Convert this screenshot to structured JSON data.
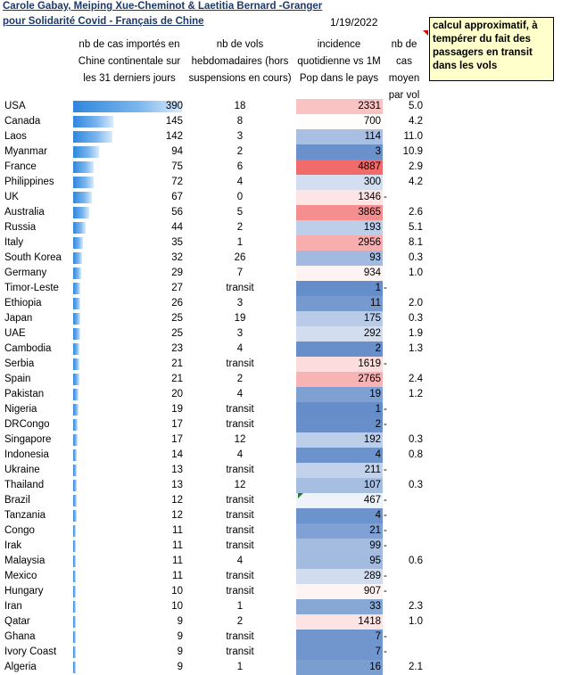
{
  "header": {
    "title_line1": "Carole Gabay, Meiping Xue-Cheminot & Laetitia Bernard -Granger",
    "title_line2": "pour Solidarité Covid - Français de Chine",
    "date": "1/19/2022",
    "note": "calcul approximatif, à tempérer du fait des passagers en transit dans les vols"
  },
  "columns": {
    "cases": "nb de cas importés en Chine continentale sur les 31 derniers jours",
    "flights": "nb de vols hebdomadaires (hors suspensions en cours)",
    "incidence": "incidence quotidienne vs 1M Pop dans le pays",
    "average": "nb de cas moyen par vol"
  },
  "colors": {
    "title": "#1f3a68",
    "bar": "#2e86de",
    "low_incidence": "#5b86c6",
    "high_incidence": "#f26b6b",
    "note_bg": "#ffffcc"
  },
  "rows": [
    {
      "country": "USA",
      "cases": 390,
      "flights": "18",
      "incidence": "2331",
      "dash": "",
      "avg": "5.0"
    },
    {
      "country": "Canada",
      "cases": 145,
      "flights": "8",
      "incidence": "700",
      "dash": "",
      "avg": "4.2"
    },
    {
      "country": "Laos",
      "cases": 142,
      "flights": "3",
      "incidence": "114",
      "dash": "",
      "avg": "11.0"
    },
    {
      "country": "Myanmar",
      "cases": 94,
      "flights": "2",
      "incidence": "3",
      "dash": "",
      "avg": "10.9"
    },
    {
      "country": "France",
      "cases": 75,
      "flights": "6",
      "incidence": "4887",
      "dash": "",
      "avg": "2.9"
    },
    {
      "country": "Philippines",
      "cases": 72,
      "flights": "4",
      "incidence": "300",
      "dash": "",
      "avg": "4.2"
    },
    {
      "country": "UK",
      "cases": 67,
      "flights": "0",
      "incidence": "1346",
      "dash": "-",
      "avg": ""
    },
    {
      "country": "Australia",
      "cases": 56,
      "flights": "5",
      "incidence": "3865",
      "dash": "",
      "avg": "2.6"
    },
    {
      "country": "Russia",
      "cases": 44,
      "flights": "2",
      "incidence": "193",
      "dash": "",
      "avg": "5.1"
    },
    {
      "country": "Italy",
      "cases": 35,
      "flights": "1",
      "incidence": "2956",
      "dash": "",
      "avg": "8.1"
    },
    {
      "country": "South Korea",
      "cases": 32,
      "flights": "26",
      "incidence": "93",
      "dash": "",
      "avg": "0.3"
    },
    {
      "country": "Germany",
      "cases": 29,
      "flights": "7",
      "incidence": "934",
      "dash": "",
      "avg": "1.0"
    },
    {
      "country": "Timor-Leste",
      "cases": 27,
      "flights": "transit",
      "incidence": "1",
      "dash": "-",
      "avg": ""
    },
    {
      "country": "Ethiopia",
      "cases": 26,
      "flights": "3",
      "incidence": "11",
      "dash": "",
      "avg": "2.0"
    },
    {
      "country": "Japan",
      "cases": 25,
      "flights": "19",
      "incidence": "175",
      "dash": "",
      "avg": "0.3"
    },
    {
      "country": "UAE",
      "cases": 25,
      "flights": "3",
      "incidence": "292",
      "dash": "",
      "avg": "1.9"
    },
    {
      "country": "Cambodia",
      "cases": 23,
      "flights": "4",
      "incidence": "2",
      "dash": "",
      "avg": "1.3"
    },
    {
      "country": "Serbia",
      "cases": 21,
      "flights": "transit",
      "incidence": "1619",
      "dash": "-",
      "avg": ""
    },
    {
      "country": "Spain",
      "cases": 21,
      "flights": "2",
      "incidence": "2765",
      "dash": "",
      "avg": "2.4"
    },
    {
      "country": "Pakistan",
      "cases": 20,
      "flights": "4",
      "incidence": "19",
      "dash": "",
      "avg": "1.2"
    },
    {
      "country": "Nigeria",
      "cases": 19,
      "flights": "transit",
      "incidence": "1",
      "dash": "-",
      "avg": ""
    },
    {
      "country": "DRCongo",
      "cases": 17,
      "flights": "transit",
      "incidence": "2",
      "dash": "-",
      "avg": ""
    },
    {
      "country": "Singapore",
      "cases": 17,
      "flights": "12",
      "incidence": "192",
      "dash": "",
      "avg": "0.3"
    },
    {
      "country": "Indonesia",
      "cases": 14,
      "flights": "4",
      "incidence": "4",
      "dash": "",
      "avg": "0.8"
    },
    {
      "country": "Ukraine",
      "cases": 13,
      "flights": "transit",
      "incidence": "211",
      "dash": "-",
      "avg": ""
    },
    {
      "country": "Thailand",
      "cases": 13,
      "flights": "12",
      "incidence": "107",
      "dash": "",
      "avg": "0.3"
    },
    {
      "country": "Brazil",
      "cases": 12,
      "flights": "transit",
      "incidence": "467",
      "dash": "-",
      "avg": "",
      "flag": true
    },
    {
      "country": "Tanzania",
      "cases": 12,
      "flights": "transit",
      "incidence": "4",
      "dash": "-",
      "avg": ""
    },
    {
      "country": "Congo",
      "cases": 11,
      "flights": "transit",
      "incidence": "21",
      "dash": "-",
      "avg": ""
    },
    {
      "country": "Irak",
      "cases": 11,
      "flights": "transit",
      "incidence": "99",
      "dash": "-",
      "avg": ""
    },
    {
      "country": "Malaysia",
      "cases": 11,
      "flights": "4",
      "incidence": "95",
      "dash": "",
      "avg": "0.6"
    },
    {
      "country": "Mexico",
      "cases": 11,
      "flights": "transit",
      "incidence": "289",
      "dash": "-",
      "avg": ""
    },
    {
      "country": "Hungary",
      "cases": 10,
      "flights": "transit",
      "incidence": "907",
      "dash": "-",
      "avg": ""
    },
    {
      "country": "Iran",
      "cases": 10,
      "flights": "1",
      "incidence": "33",
      "dash": "",
      "avg": "2.3"
    },
    {
      "country": "Qatar",
      "cases": 9,
      "flights": "2",
      "incidence": "1418",
      "dash": "",
      "avg": "1.0"
    },
    {
      "country": "Ghana",
      "cases": 9,
      "flights": "transit",
      "incidence": "7",
      "dash": "-",
      "avg": ""
    },
    {
      "country": "Ivory Coast",
      "cases": 9,
      "flights": "transit",
      "incidence": "7",
      "dash": "-",
      "avg": ""
    },
    {
      "country": "Algeria",
      "cases": 9,
      "flights": "1",
      "incidence": "16",
      "dash": "",
      "avg": "2.1"
    }
  ]
}
